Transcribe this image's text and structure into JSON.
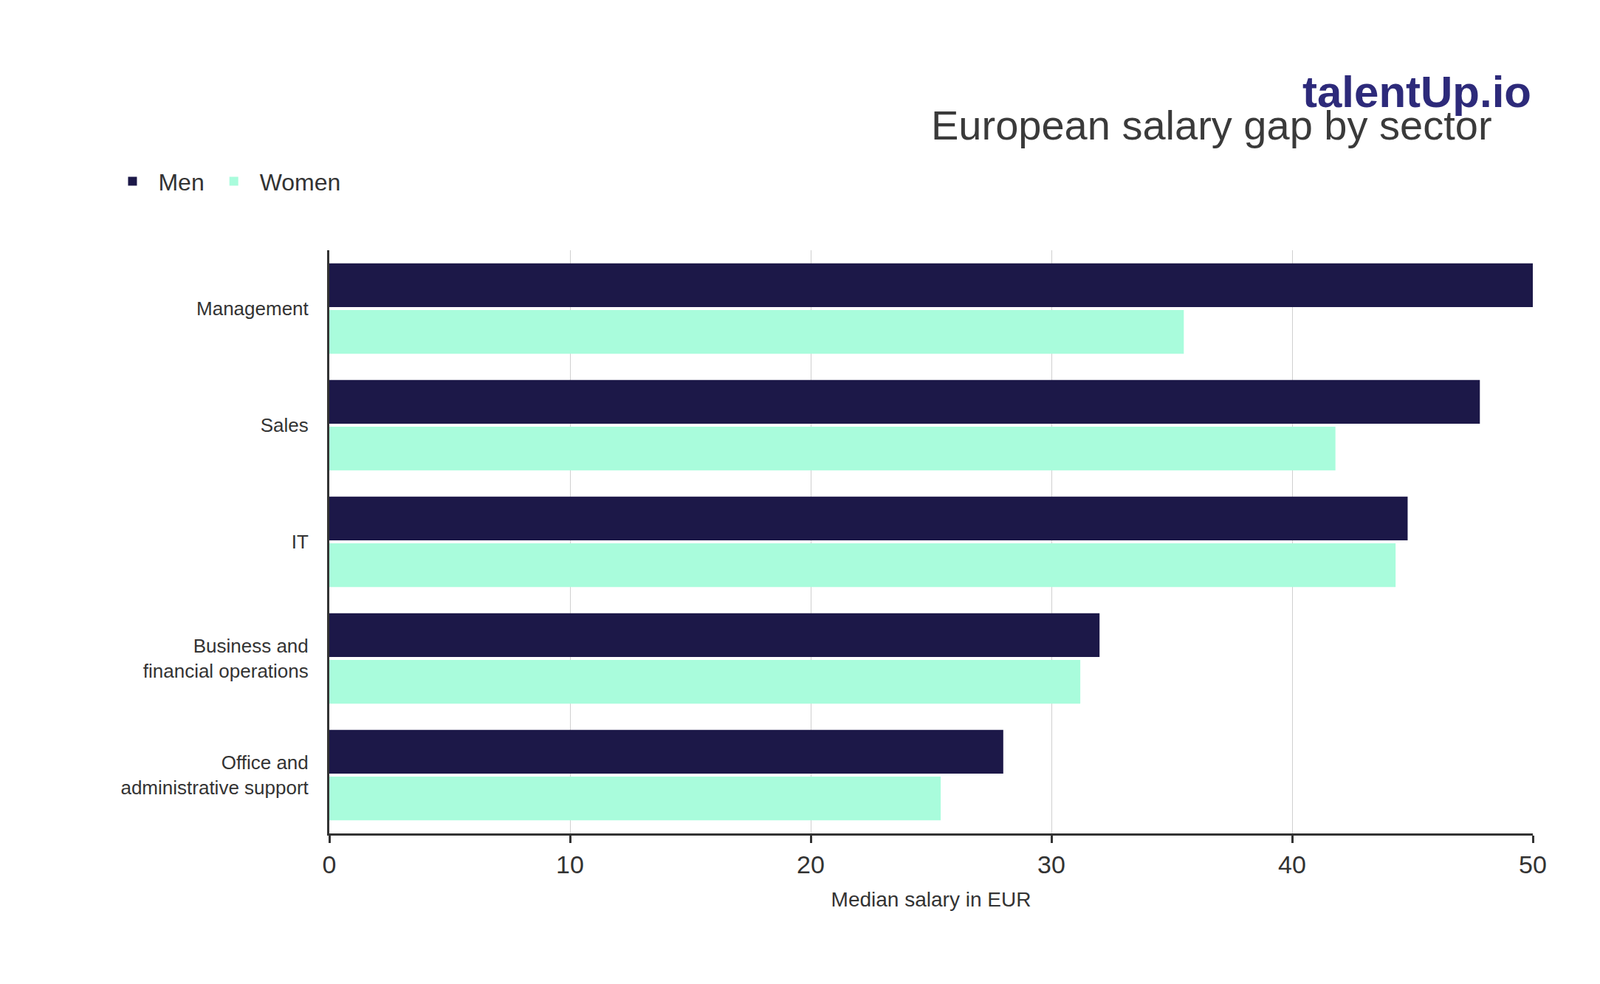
{
  "chart_data": {
    "type": "bar",
    "title": "European salary gap by sector",
    "annotations": [
      "talentUp.io"
    ],
    "orientation": "horizontal",
    "categories": [
      "Management",
      "Sales",
      "IT",
      "Business and\nfinancial operations",
      "Office and\nadministrative support"
    ],
    "series": [
      {
        "name": "Men",
        "color": "#1c1848",
        "values": [
          50,
          47.8,
          44.8,
          32.0,
          28.0
        ]
      },
      {
        "name": "Women",
        "color": "#a9fcdc",
        "values": [
          35.5,
          41.8,
          44.3,
          31.2,
          25.4
        ]
      }
    ],
    "xlabel": "Median salary in EUR",
    "xlim": [
      0,
      50
    ],
    "xticks": [
      0,
      10,
      20,
      30,
      40,
      50
    ],
    "grid": true,
    "legend": "top left"
  }
}
